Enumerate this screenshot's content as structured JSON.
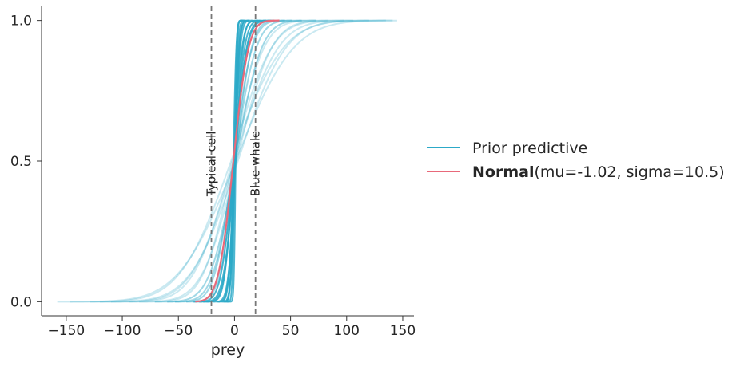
{
  "chart_data": {
    "type": "line",
    "xlabel": "prey",
    "ylabel": "",
    "xlim": [
      -172,
      160
    ],
    "ylim": [
      -0.05,
      1.05
    ],
    "x_ticks": [
      -150,
      -100,
      -50,
      0,
      50,
      100,
      150
    ],
    "x_tick_labels": [
      "−150",
      "−100",
      "−50",
      "0",
      "50",
      "100",
      "150"
    ],
    "y_ticks": [
      0.0,
      0.5,
      1.0
    ],
    "y_tick_labels": [
      "0.0",
      "0.5",
      "1.0"
    ],
    "grid": false,
    "legend_placement": "right, outside plot",
    "series": [
      {
        "name": "Prior predictive",
        "color": "#2ca9c8",
        "kind": "ensemble of normal CDF curves",
        "curves": [
          {
            "mu": 0,
            "sigma": 1.5
          },
          {
            "mu": 1,
            "sigma": 1.2
          },
          {
            "mu": -1,
            "sigma": 2
          },
          {
            "mu": 0,
            "sigma": 2.5
          },
          {
            "mu": 0.5,
            "sigma": 3
          },
          {
            "mu": -0.5,
            "sigma": 3.5
          },
          {
            "mu": 0,
            "sigma": 4
          },
          {
            "mu": 1,
            "sigma": 5
          },
          {
            "mu": -1,
            "sigma": 6
          },
          {
            "mu": 0,
            "sigma": 7
          },
          {
            "mu": 0.5,
            "sigma": 8
          },
          {
            "mu": -0.5,
            "sigma": 9
          },
          {
            "mu": 1,
            "sigma": 11
          },
          {
            "mu": -1,
            "sigma": 13
          },
          {
            "mu": 0,
            "sigma": 15
          },
          {
            "mu": 1,
            "sigma": 18
          },
          {
            "mu": -1,
            "sigma": 21
          },
          {
            "mu": 2,
            "sigma": 24
          },
          {
            "mu": -2,
            "sigma": 27
          },
          {
            "mu": 0,
            "sigma": 30
          },
          {
            "mu": 3,
            "sigma": 33
          },
          {
            "mu": -3,
            "sigma": 36
          },
          {
            "mu": 1,
            "sigma": 40
          }
        ]
      },
      {
        "name": "Normal",
        "name_params": "(mu=-1.02, sigma=10.5)",
        "color": "#e8697a",
        "kind": "normal CDF",
        "mu": -1.02,
        "sigma": 10.5,
        "x_range": [
          -35,
          40
        ]
      }
    ],
    "reference_lines": [
      {
        "x": -20.6,
        "label": "Typical cell"
      },
      {
        "x": 18.7,
        "label": "Blue whale"
      }
    ]
  }
}
